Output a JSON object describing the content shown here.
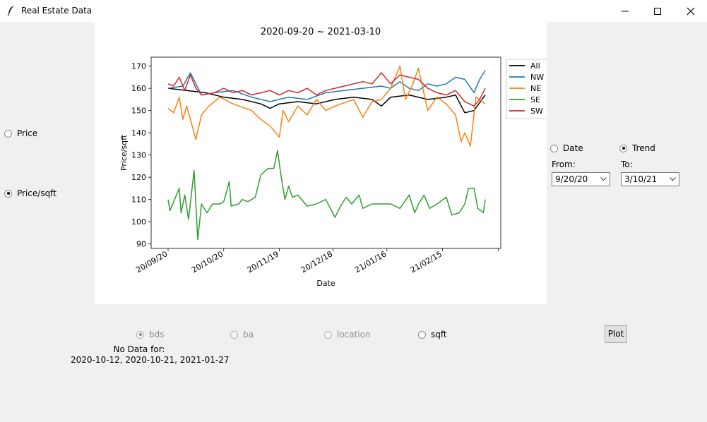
{
  "window": {
    "title": "Real Estate Data"
  },
  "left_radios": [
    {
      "label": "Price",
      "selected": false
    },
    {
      "label": "Price/sqft",
      "selected": true
    }
  ],
  "right_panel": {
    "mode_radios": [
      {
        "label": "Date",
        "selected": false
      },
      {
        "label": "Trend",
        "selected": true
      }
    ],
    "from_label": "From:",
    "from_value": "9/20/20",
    "to_label": "To:",
    "to_value": "3/10/21"
  },
  "attr_radios": [
    {
      "label": "bds",
      "selected": true,
      "enabled": false
    },
    {
      "label": "ba",
      "selected": false,
      "enabled": false
    },
    {
      "label": "location",
      "selected": false,
      "enabled": false
    },
    {
      "label": "sqft",
      "selected": false,
      "enabled": true
    }
  ],
  "plot_button": "Plot",
  "no_data": {
    "title": "No Data for:",
    "dates": "2020-10-12, 2020-10-21, 2021-01-27"
  },
  "chart_data": {
    "type": "line",
    "title": "2020-09-20 ~ 2021-03-10",
    "xlabel": "Date",
    "ylabel": "Price/sqft",
    "ylim": [
      88,
      174
    ],
    "yticks": [
      90,
      100,
      110,
      120,
      130,
      140,
      150,
      160,
      170
    ],
    "x_tick_labels": [
      "20/09/20",
      "20/10/20",
      "20/11/19",
      "20/12/18",
      "21/01/16",
      "21/02/15"
    ],
    "x_tick_days": [
      0,
      30,
      60,
      89,
      118,
      148
    ],
    "days_total": 171,
    "legend": "top-right, outside plot",
    "series": [
      {
        "name": "All",
        "color": "#000000",
        "points": [
          [
            0,
            160
          ],
          [
            10,
            159
          ],
          [
            20,
            158
          ],
          [
            30,
            156
          ],
          [
            40,
            155
          ],
          [
            50,
            153
          ],
          [
            55,
            151
          ],
          [
            60,
            153
          ],
          [
            70,
            154
          ],
          [
            80,
            153
          ],
          [
            90,
            155
          ],
          [
            100,
            156
          ],
          [
            110,
            155
          ],
          [
            115,
            152
          ],
          [
            120,
            156
          ],
          [
            130,
            157
          ],
          [
            140,
            155
          ],
          [
            150,
            156
          ],
          [
            155,
            157
          ],
          [
            160,
            149
          ],
          [
            165,
            150
          ],
          [
            171,
            157
          ]
        ]
      },
      {
        "name": "NW",
        "color": "#1f77b4",
        "points": [
          [
            0,
            160
          ],
          [
            8,
            161
          ],
          [
            12,
            167
          ],
          [
            18,
            157
          ],
          [
            25,
            158
          ],
          [
            35,
            159
          ],
          [
            45,
            156
          ],
          [
            55,
            154
          ],
          [
            65,
            156
          ],
          [
            75,
            155
          ],
          [
            85,
            158
          ],
          [
            95,
            159
          ],
          [
            105,
            160
          ],
          [
            115,
            161
          ],
          [
            120,
            160
          ],
          [
            125,
            163
          ],
          [
            130,
            160
          ],
          [
            135,
            159
          ],
          [
            140,
            162
          ],
          [
            145,
            161
          ],
          [
            150,
            162
          ],
          [
            155,
            165
          ],
          [
            160,
            164
          ],
          [
            165,
            158
          ],
          [
            168,
            164
          ],
          [
            171,
            168
          ]
        ]
      },
      {
        "name": "NE",
        "color": "#ff7f0e",
        "points": [
          [
            0,
            151
          ],
          [
            3,
            149
          ],
          [
            6,
            156
          ],
          [
            8,
            146
          ],
          [
            10,
            152
          ],
          [
            15,
            137
          ],
          [
            18,
            148
          ],
          [
            22,
            152
          ],
          [
            28,
            156
          ],
          [
            35,
            153
          ],
          [
            45,
            150
          ],
          [
            50,
            146
          ],
          [
            55,
            143
          ],
          [
            60,
            138
          ],
          [
            62,
            150
          ],
          [
            65,
            145
          ],
          [
            70,
            152
          ],
          [
            75,
            148
          ],
          [
            80,
            155
          ],
          [
            85,
            150
          ],
          [
            90,
            152
          ],
          [
            100,
            155
          ],
          [
            105,
            147
          ],
          [
            110,
            154
          ],
          [
            115,
            155
          ],
          [
            120,
            160
          ],
          [
            125,
            170
          ],
          [
            128,
            155
          ],
          [
            132,
            162
          ],
          [
            135,
            169
          ],
          [
            140,
            150
          ],
          [
            145,
            156
          ],
          [
            150,
            153
          ],
          [
            155,
            148
          ],
          [
            158,
            136
          ],
          [
            160,
            140
          ],
          [
            163,
            134
          ],
          [
            166,
            156
          ],
          [
            168,
            155
          ],
          [
            171,
            153
          ]
        ]
      },
      {
        "name": "SE",
        "color": "#2ca02c",
        "points": [
          [
            0,
            110
          ],
          [
            1,
            105
          ],
          [
            3,
            109
          ],
          [
            6,
            115
          ],
          [
            7,
            104
          ],
          [
            9,
            112
          ],
          [
            11,
            101
          ],
          [
            14,
            123
          ],
          [
            16,
            92
          ],
          [
            18,
            108
          ],
          [
            21,
            104
          ],
          [
            24,
            108
          ],
          [
            28,
            108
          ],
          [
            30,
            109
          ],
          [
            33,
            118
          ],
          [
            34,
            107
          ],
          [
            38,
            108
          ],
          [
            40,
            110
          ],
          [
            43,
            109
          ],
          [
            47,
            111
          ],
          [
            50,
            121
          ],
          [
            54,
            124
          ],
          [
            57,
            124
          ],
          [
            59,
            132
          ],
          [
            61,
            120
          ],
          [
            63,
            110
          ],
          [
            65,
            116
          ],
          [
            67,
            111
          ],
          [
            70,
            112
          ],
          [
            75,
            107
          ],
          [
            80,
            108
          ],
          [
            85,
            110
          ],
          [
            90,
            102
          ],
          [
            93,
            107
          ],
          [
            96,
            111
          ],
          [
            99,
            108
          ],
          [
            103,
            112
          ],
          [
            105,
            106
          ],
          [
            110,
            108
          ],
          [
            115,
            108
          ],
          [
            120,
            108
          ],
          [
            125,
            106
          ],
          [
            130,
            112
          ],
          [
            133,
            104
          ],
          [
            135,
            108
          ],
          [
            138,
            112
          ],
          [
            141,
            106
          ],
          [
            145,
            108
          ],
          [
            150,
            111
          ],
          [
            153,
            103
          ],
          [
            157,
            104
          ],
          [
            160,
            108
          ],
          [
            162,
            115
          ],
          [
            165,
            115
          ],
          [
            167,
            106
          ],
          [
            170,
            104
          ],
          [
            171,
            110
          ]
        ]
      },
      {
        "name": "SW",
        "color": "#d62728",
        "points": [
          [
            0,
            162
          ],
          [
            3,
            161
          ],
          [
            6,
            165
          ],
          [
            9,
            159
          ],
          [
            12,
            166
          ],
          [
            15,
            160
          ],
          [
            18,
            157
          ],
          [
            25,
            158
          ],
          [
            30,
            160
          ],
          [
            35,
            158
          ],
          [
            40,
            159
          ],
          [
            45,
            157
          ],
          [
            50,
            158
          ],
          [
            55,
            159
          ],
          [
            60,
            157
          ],
          [
            65,
            159
          ],
          [
            70,
            158
          ],
          [
            75,
            160
          ],
          [
            80,
            157
          ],
          [
            85,
            159
          ],
          [
            90,
            160
          ],
          [
            95,
            161
          ],
          [
            100,
            162
          ],
          [
            105,
            163
          ],
          [
            110,
            162
          ],
          [
            115,
            167
          ],
          [
            120,
            162
          ],
          [
            125,
            166
          ],
          [
            130,
            165
          ],
          [
            135,
            164
          ],
          [
            140,
            160
          ],
          [
            145,
            158
          ],
          [
            150,
            157
          ],
          [
            155,
            159
          ],
          [
            160,
            154
          ],
          [
            165,
            152
          ],
          [
            168,
            155
          ],
          [
            171,
            160
          ]
        ]
      }
    ]
  }
}
